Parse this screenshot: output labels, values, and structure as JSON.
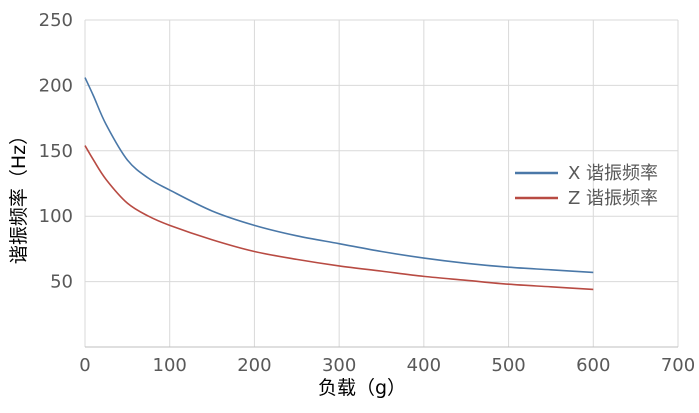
{
  "chart_data": {
    "type": "line",
    "xlabel": "负载（g）",
    "ylabel": "谐振频率（Hz）",
    "xlim": [
      0,
      700
    ],
    "ylim": [
      0,
      250
    ],
    "xticks": [
      0,
      100,
      200,
      300,
      400,
      500,
      600,
      700
    ],
    "yticks": [
      50,
      100,
      150,
      200,
      250
    ],
    "grid": true,
    "legend_position": "right",
    "series": [
      {
        "name": "X 谐振频率",
        "color": "#4a78a8",
        "x": [
          0,
          10,
          25,
          50,
          75,
          100,
          150,
          200,
          250,
          300,
          350,
          400,
          450,
          500,
          550,
          600
        ],
        "y": [
          206,
          192,
          170,
          143,
          129,
          120,
          104,
          93,
          85,
          79,
          73,
          68,
          64,
          61,
          59,
          57
        ]
      },
      {
        "name": "Z 谐振频率",
        "color": "#b84b43",
        "x": [
          0,
          10,
          25,
          50,
          75,
          100,
          150,
          200,
          250,
          300,
          350,
          400,
          450,
          500,
          550,
          600
        ],
        "y": [
          154,
          143,
          128,
          110,
          100,
          93,
          82,
          73,
          67,
          62,
          58,
          54,
          51,
          48,
          46,
          44
        ]
      }
    ]
  }
}
